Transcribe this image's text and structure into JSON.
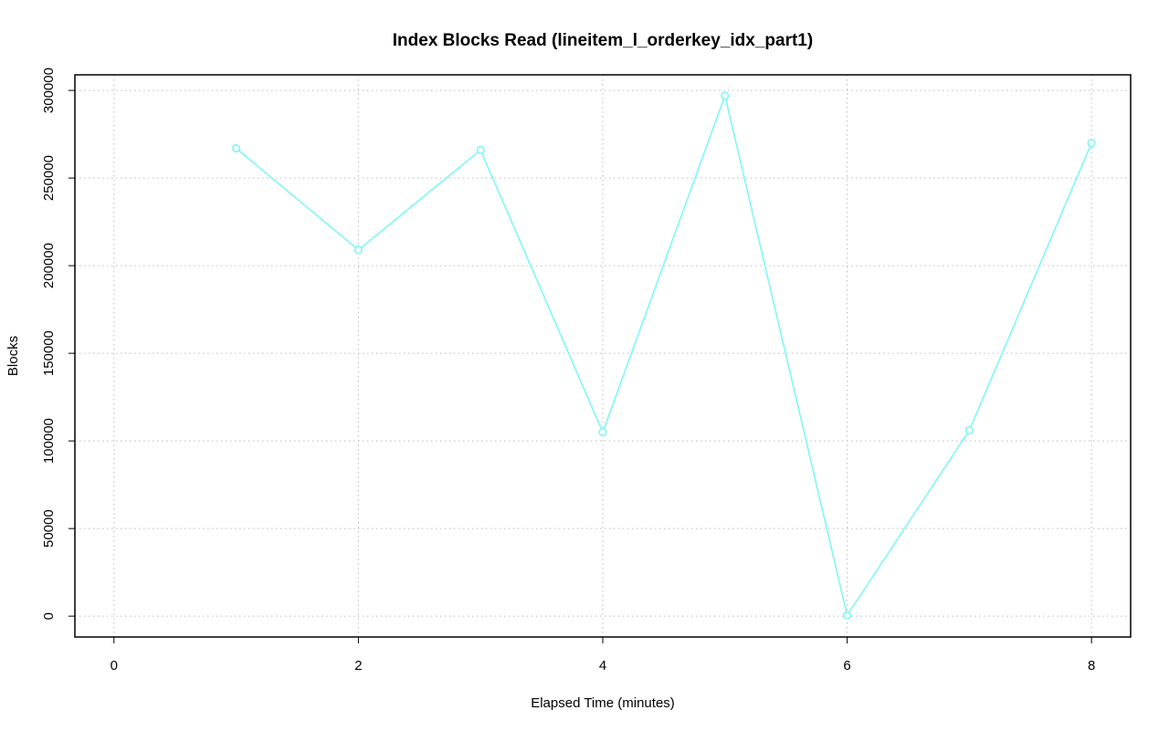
{
  "chart_data": {
    "type": "line",
    "title": "Index Blocks Read (lineitem_l_orderkey_idx_part1)",
    "x_label": "Elapsed Time (minutes)",
    "y_label": "Blocks",
    "x": [
      1,
      2,
      3,
      4,
      5,
      6,
      7,
      8
    ],
    "series": [
      {
        "name": "lineitem_l_orderkey_idx_part1",
        "color": "#7ff7f7",
        "values": [
          267000,
          209000,
          266000,
          105000,
          297000,
          500,
          106000,
          270000
        ]
      }
    ],
    "xlim": [
      -0.32,
      8.32
    ],
    "xticks": [
      0,
      2,
      4,
      6,
      8
    ],
    "ylim": [
      -11900,
      308900
    ],
    "yticks": [
      0,
      50000,
      100000,
      150000,
      200000,
      250000,
      300000
    ],
    "grid": true
  }
}
